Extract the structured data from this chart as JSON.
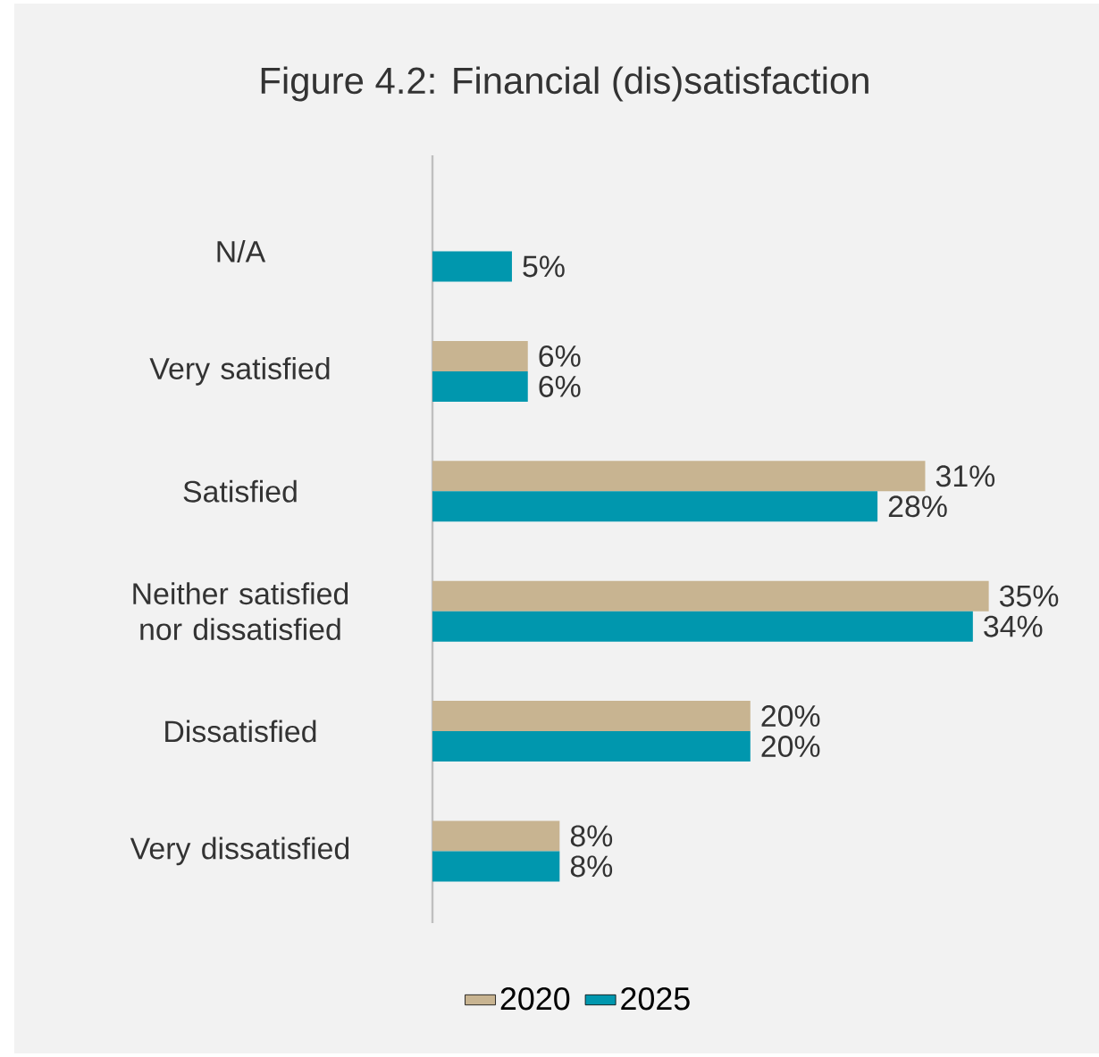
{
  "chart_data": {
    "type": "bar",
    "orientation": "horizontal",
    "title": "Figure 4.2: Financial (dis)satisfaction",
    "categories": [
      "N/A",
      "Very satisfied",
      "Satisfied",
      "Neither satisfied nor dissatisfied",
      "Dissatisfied",
      "Very dissatisfied"
    ],
    "series": [
      {
        "name": "2020",
        "color": "#c8b491",
        "values": [
          null,
          6,
          31,
          35,
          20,
          8
        ],
        "value_labels": [
          null,
          "6%",
          "31%",
          "35%",
          "20%",
          "8%"
        ]
      },
      {
        "name": "2025",
        "color": "#0097ae",
        "values": [
          5,
          6,
          28,
          34,
          20,
          8
        ],
        "value_labels": [
          "5%",
          "6%",
          "28%",
          "34%",
          "20%",
          "8%"
        ]
      }
    ],
    "legend": "bottom"
  }
}
